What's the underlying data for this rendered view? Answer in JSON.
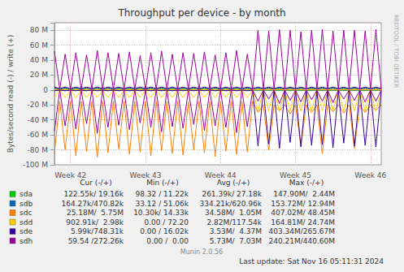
{
  "chart_data": {
    "type": "line",
    "title": "Throughput per device - by month",
    "y_label": "Bytes/second read (-) / write (+)",
    "grid": true,
    "ylim": [
      -100000000,
      90000000
    ],
    "yticks": [
      {
        "value": -100000000,
        "label": "-100 M"
      },
      {
        "value": -80000000,
        "label": "-80 M"
      },
      {
        "value": -60000000,
        "label": "-60 M"
      },
      {
        "value": -40000000,
        "label": "-40 M"
      },
      {
        "value": -20000000,
        "label": "-20 M"
      },
      0,
      {
        "value": 20000000,
        "label": "20 M"
      },
      {
        "value": 40000000,
        "label": "40 M"
      },
      {
        "value": 60000000,
        "label": "60 M"
      },
      {
        "value": 80000000,
        "label": "80 M"
      }
    ],
    "categories": [
      null,
      null,
      null,
      "Week 42",
      null,
      null,
      null,
      null,
      null,
      null,
      null,
      null,
      null,
      null,
      null,
      null,
      null,
      "Week 43",
      null,
      null,
      null,
      null,
      null,
      null,
      null,
      null,
      null,
      null,
      null,
      null,
      null,
      "Week 44",
      null,
      null,
      null,
      null,
      null,
      null,
      null,
      null,
      null,
      null,
      null,
      null,
      null,
      "Week 45",
      null,
      null,
      null,
      null,
      null,
      null,
      null,
      null,
      null,
      null,
      null,
      null,
      null,
      "Week 46",
      null,
      null
    ],
    "stat_columns": [
      "Cur (-/+)",
      "Min (-/+)",
      "Avg (-/+)",
      "Max (-/+)"
    ],
    "series": [
      {
        "name": "sda",
        "color": "#00cc00",
        "cur": "122.55k/ 19.16k",
        "min": "98.32 / 11.22k",
        "avg": "261.39k/ 27.18k",
        "max": "147.90M/  2.44M",
        "values": [
          2000000,
          300000,
          2000000,
          300000,
          2000000,
          300000,
          2000000,
          300000,
          2000000,
          300000,
          2000000,
          300000,
          2000000,
          300000,
          2000000,
          300000,
          2000000,
          300000,
          2000000,
          300000,
          2000000,
          300000,
          2000000,
          300000,
          2000000,
          300000,
          2000000,
          300000,
          2000000,
          300000,
          2000000,
          300000,
          2000000,
          300000,
          2000000,
          300000,
          2000000,
          300000,
          2000000,
          300000,
          2000000,
          300000,
          2000000,
          300000,
          2000000,
          300000,
          2000000,
          300000,
          2000000,
          300000,
          2000000,
          300000,
          2000000,
          300000,
          2000000,
          300000,
          2000000,
          300000,
          2000000,
          300000,
          2000000,
          300000
        ],
        "read": [
          -500000,
          -200000,
          -500000,
          -200000,
          -500000,
          -200000,
          -500000,
          -200000,
          -500000,
          -200000,
          -500000,
          -200000,
          -500000,
          -200000,
          -500000,
          -200000,
          -500000,
          -200000,
          -500000,
          -200000,
          -500000,
          -200000,
          -500000,
          -200000,
          -500000,
          -200000,
          -500000,
          -200000,
          -500000,
          -200000,
          -500000,
          -200000,
          -500000,
          -200000,
          -500000,
          -200000,
          -500000,
          -200000,
          -500000,
          -200000,
          -500000,
          -200000,
          -500000,
          -200000,
          -500000,
          -200000,
          -500000,
          -200000,
          -500000,
          -200000,
          -500000,
          -200000,
          -500000,
          -200000,
          -500000,
          -200000,
          -500000,
          -200000,
          -500000,
          -200000,
          -500000,
          -200000
        ]
      },
      {
        "name": "sdb",
        "color": "#0066b3",
        "cur": "164.27k/470.82k",
        "min": "33.12 / 51.06k",
        "avg": "334.21k/620.96k",
        "max": "153.72M/ 12.94M",
        "values": [
          3000000,
          500000,
          3000000,
          500000,
          3000000,
          500000,
          3000000,
          500000,
          3000000,
          500000,
          3000000,
          500000,
          3000000,
          500000,
          3000000,
          500000,
          3000000,
          500000,
          3000000,
          500000,
          3000000,
          500000,
          3000000,
          500000,
          3000000,
          500000,
          3000000,
          500000,
          3000000,
          500000,
          3000000,
          500000,
          3000000,
          500000,
          3000000,
          500000,
          3000000,
          500000,
          3000000,
          500000,
          3000000,
          500000,
          3000000,
          500000,
          3000000,
          500000,
          3000000,
          500000,
          3000000,
          500000,
          3000000,
          500000,
          3000000,
          500000,
          3000000,
          500000,
          3000000,
          500000,
          3000000,
          500000,
          3000000,
          500000
        ],
        "read": [
          -600000,
          -300000,
          -600000,
          -300000,
          -600000,
          -300000,
          -600000,
          -300000,
          -600000,
          -300000,
          -600000,
          -300000,
          -600000,
          -300000,
          -600000,
          -300000,
          -600000,
          -300000,
          -600000,
          -300000,
          -600000,
          -300000,
          -600000,
          -300000,
          -600000,
          -300000,
          -600000,
          -300000,
          -600000,
          -300000,
          -600000,
          -300000,
          -600000,
          -300000,
          -600000,
          -300000,
          -600000,
          -300000,
          -600000,
          -300000,
          -600000,
          -300000,
          -600000,
          -300000,
          -600000,
          -300000,
          -600000,
          -300000,
          -600000,
          -300000,
          -600000,
          -300000,
          -600000,
          -300000,
          -600000,
          -300000,
          -600000,
          -300000,
          -600000,
          -300000,
          -600000,
          -300000
        ]
      },
      {
        "name": "sdc",
        "color": "#ff8000",
        "cur": "25.18M/  5.75M",
        "min": "10.30k/ 14.33k",
        "avg": "34.58M/  1.05M",
        "max": "407.02M/ 48.45M",
        "values": [
          1000000,
          500000,
          1000000,
          500000,
          1000000,
          500000,
          1000000,
          500000,
          1000000,
          500000,
          1000000,
          500000,
          1000000,
          500000,
          1000000,
          500000,
          1000000,
          500000,
          1000000,
          500000,
          1000000,
          500000,
          1000000,
          500000,
          1000000,
          500000,
          1000000,
          500000,
          1000000,
          500000,
          1000000,
          500000,
          1000000,
          500000,
          1000000,
          500000,
          1000000,
          500000,
          1000000,
          500000,
          1000000,
          500000,
          1000000,
          500000,
          1000000,
          500000,
          1000000,
          500000,
          1000000,
          500000,
          1000000,
          500000,
          1000000,
          500000,
          1000000,
          500000,
          1000000,
          500000,
          1000000,
          500000,
          1000000,
          500000
        ],
        "read": [
          -85000000,
          -15000000,
          -80000000,
          -15000000,
          -88000000,
          -15000000,
          -82000000,
          -15000000,
          -90000000,
          -15000000,
          -84000000,
          -15000000,
          -79000000,
          -15000000,
          -86000000,
          -15000000,
          -83000000,
          -15000000,
          -88000000,
          -15000000,
          -81000000,
          -15000000,
          -85000000,
          -15000000,
          -87000000,
          -15000000,
          -80000000,
          -15000000,
          -84000000,
          -15000000,
          -89000000,
          -15000000,
          -82000000,
          -15000000,
          -86000000,
          -15000000,
          -83000000,
          -15000000,
          -30000000,
          -20000000,
          -80000000,
          -20000000,
          -28000000,
          -20000000,
          -32000000,
          -20000000,
          -75000000,
          -20000000,
          -30000000,
          -20000000,
          -85000000,
          -20000000,
          -29000000,
          -20000000,
          -31000000,
          -20000000,
          -78000000,
          -20000000,
          -30000000,
          -20000000,
          -27000000,
          -20000000
        ]
      },
      {
        "name": "sdd",
        "color": "#ffcc00",
        "cur": "902.91k/  2.98k",
        "min": "0.00 / 72.20",
        "avg": "2.82M/117.54k",
        "max": "164.81M/ 24.74M",
        "values": [
          100000,
          0,
          100000,
          0,
          100000,
          0,
          100000,
          0,
          100000,
          0,
          100000,
          0,
          100000,
          0,
          100000,
          0,
          100000,
          0,
          100000,
          0,
          100000,
          0,
          100000,
          0,
          100000,
          0,
          100000,
          0,
          100000,
          0,
          100000,
          0,
          100000,
          0,
          100000,
          0,
          100000,
          0,
          100000,
          0,
          100000,
          0,
          100000,
          0,
          100000,
          0,
          100000,
          0,
          100000,
          0,
          100000,
          0,
          100000,
          0,
          100000,
          0,
          100000,
          0,
          100000,
          0,
          100000,
          0
        ],
        "read": [
          -10000000,
          0,
          -10000000,
          0,
          -10000000,
          0,
          -10000000,
          0,
          -10000000,
          0,
          -10000000,
          0,
          -10000000,
          0,
          -10000000,
          0,
          -10000000,
          0,
          -10000000,
          0,
          -10000000,
          0,
          -10000000,
          0,
          -10000000,
          0,
          -10000000,
          0,
          -10000000,
          0,
          -10000000,
          0,
          -10000000,
          0,
          -10000000,
          0,
          -10000000,
          0,
          -28000000,
          -1000000,
          -28000000,
          -1000000,
          -28000000,
          -1000000,
          -28000000,
          -1000000,
          -28000000,
          -1000000,
          -28000000,
          -1000000,
          -28000000,
          -1000000,
          -28000000,
          -1000000,
          -28000000,
          -1000000,
          -28000000,
          -1000000,
          -28000000,
          -1000000,
          -28000000,
          -1000000
        ]
      },
      {
        "name": "sde",
        "color": "#330099",
        "cur": "5.99k/748.31k",
        "min": "0.00 / 16.02k",
        "avg": "3.53M/  4.37M",
        "max": "403.34M/265.67M",
        "values": [
          4000000,
          2000000,
          4000000,
          2000000,
          4000000,
          2000000,
          4000000,
          2000000,
          4000000,
          2000000,
          4000000,
          2000000,
          4000000,
          2000000,
          4000000,
          2000000,
          4000000,
          2000000,
          4000000,
          2000000,
          4000000,
          2000000,
          4000000,
          2000000,
          4000000,
          2000000,
          4000000,
          2000000,
          4000000,
          2000000,
          4000000,
          2000000,
          4000000,
          2000000,
          4000000,
          2000000,
          4000000,
          2000000,
          4000000,
          2000000,
          4000000,
          2000000,
          4000000,
          2000000,
          4000000,
          2000000,
          4000000,
          2000000,
          4000000,
          2000000,
          4000000,
          2000000,
          4000000,
          2000000,
          4000000,
          2000000,
          4000000,
          2000000,
          4000000,
          2000000,
          4000000,
          2000000
        ],
        "read": [
          -1000000,
          0,
          -1000000,
          0,
          -1000000,
          0,
          -1000000,
          0,
          -1000000,
          0,
          -1000000,
          0,
          -1000000,
          0,
          -1000000,
          0,
          -1000000,
          0,
          -1000000,
          0,
          -1000000,
          0,
          -1000000,
          0,
          -1000000,
          0,
          -1000000,
          0,
          -1000000,
          0,
          -1000000,
          0,
          -1000000,
          0,
          -1000000,
          0,
          -1000000,
          0,
          -75000000,
          -1000000,
          -72000000,
          -1000000,
          -78000000,
          -1000000,
          -70000000,
          -1000000,
          -76000000,
          -1000000,
          -74000000,
          -1000000,
          -73000000,
          -1000000,
          -77000000,
          -1000000,
          -71000000,
          -1000000,
          -75000000,
          -1000000,
          -74000000,
          -1000000,
          -76000000,
          -1000000
        ]
      },
      {
        "name": "sdh",
        "color": "#990099",
        "cur": "59.54 /272.26k",
        "min": "0.00 /  0.00",
        "avg": "5.73M/  7.03M",
        "max": "240.21M/440.60M",
        "values": [
          52000000,
          1000000,
          48000000,
          1000000,
          50000000,
          1000000,
          47000000,
          1000000,
          53000000,
          1000000,
          50000000,
          1000000,
          49000000,
          1000000,
          51000000,
          1000000,
          46000000,
          1000000,
          50000000,
          1000000,
          52000000,
          1000000,
          48000000,
          1000000,
          50000000,
          1000000,
          49000000,
          1000000,
          51000000,
          1000000,
          47000000,
          1000000,
          50000000,
          1000000,
          53000000,
          1000000,
          48000000,
          1000000,
          80000000,
          1000000,
          79000000,
          1000000,
          81000000,
          1000000,
          80000000,
          1000000,
          78000000,
          1000000,
          80000000,
          1000000,
          81000000,
          1000000,
          79000000,
          1000000,
          80000000,
          1000000,
          80000000,
          1000000,
          79000000,
          1000000,
          81000000,
          1000000
        ],
        "read": [
          -55000000,
          0,
          -48000000,
          0,
          -52000000,
          0,
          -45000000,
          0,
          -58000000,
          0,
          -50000000,
          0,
          -47000000,
          0,
          -53000000,
          0,
          -44000000,
          0,
          -50000000,
          0,
          -56000000,
          0,
          -49000000,
          0,
          -51000000,
          0,
          -46000000,
          0,
          -54000000,
          0,
          -48000000,
          0,
          -50000000,
          0,
          -57000000,
          0,
          -49000000,
          0,
          -15000000,
          0,
          -12000000,
          0,
          -18000000,
          0,
          -14000000,
          0,
          -16000000,
          0,
          -13000000,
          0,
          -15000000,
          0,
          -17000000,
          0,
          -12000000,
          0,
          -14000000,
          0,
          -16000000,
          0,
          -15000000,
          0
        ]
      }
    ],
    "footer": {
      "version": "Munin 2.0.56",
      "last_update": "Last update: Sat Nov 16 05:11:31 2024",
      "watermark": "RRDTOOL / TOBI OETIKER"
    }
  }
}
